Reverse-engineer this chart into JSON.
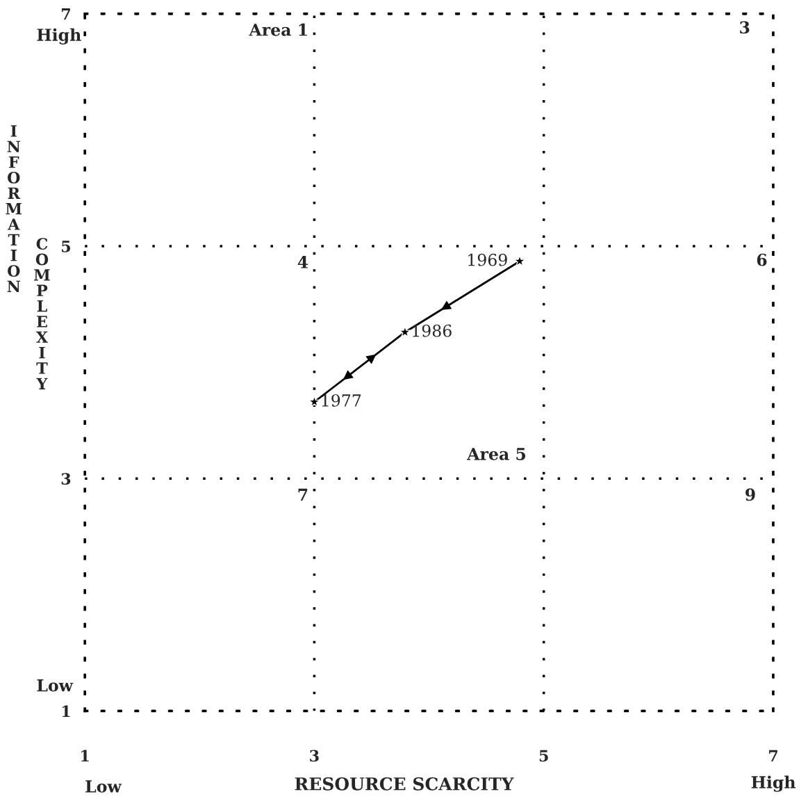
{
  "chart_data": {
    "type": "scatter",
    "xlabel": "RESOURCE SCARCITY",
    "ylabel": "INFORMATION COMPLEXITY",
    "xlim": [
      1,
      7
    ],
    "ylim": [
      1,
      7
    ],
    "xticks": [
      1,
      3,
      5,
      7
    ],
    "yticks": [
      1,
      3,
      5,
      7
    ],
    "grid": true,
    "series": [
      {
        "type": "line",
        "color": "#000000",
        "x": [
          4.79,
          3.79,
          3.0,
          3.79
        ],
        "values": [
          4.87,
          4.26,
          3.66,
          4.26
        ],
        "marker": "none"
      },
      {
        "color": "#000000",
        "x": [
          4.79,
          3.0,
          3.79
        ],
        "values": [
          4.87,
          3.66,
          4.26
        ],
        "marker": "star"
      }
    ],
    "annotations": [
      {
        "text": "1969",
        "x": 4.79,
        "y": 4.87
      },
      {
        "text": "1977",
        "x": 3.0,
        "y": 3.66
      },
      {
        "text": "1986",
        "x": 3.79,
        "y": 4.26
      },
      "Area 1",
      "3",
      "4",
      "6",
      "Area 5",
      "7",
      "9",
      "High",
      "Low",
      "Low",
      "High"
    ]
  }
}
